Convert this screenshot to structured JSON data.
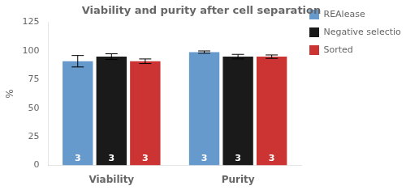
{
  "chart_data": {
    "type": "bar",
    "title": "Viability and purity after cell separation",
    "ylabel": "%",
    "categories": [
      "Viability",
      "Purity"
    ],
    "series": [
      {
        "name": "REAlease",
        "color": "#6699CC",
        "values": [
          91,
          99
        ],
        "errors": [
          5,
          1
        ],
        "n_labels": [
          "3",
          "3"
        ]
      },
      {
        "name": "Negative selection",
        "color": "#1a1a1a",
        "values": [
          95,
          95
        ],
        "errors": [
          2.5,
          2.0
        ],
        "n_labels": [
          "3",
          "3"
        ]
      },
      {
        "name": "Sorted",
        "color": "#CC3333",
        "values": [
          91,
          95
        ],
        "errors": [
          2,
          1.5
        ],
        "n_labels": [
          "3",
          "3"
        ]
      }
    ],
    "ylim": [
      0,
      125
    ],
    "yticks": [
      0,
      25,
      50,
      75,
      100,
      125
    ],
    "grid": false,
    "legend": "right"
  }
}
